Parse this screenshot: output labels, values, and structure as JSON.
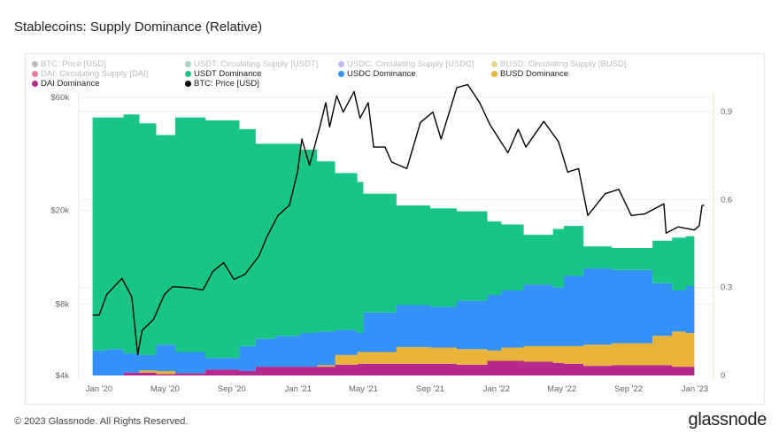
{
  "title": "Stablecoins: Supply Dominance (Relative)",
  "footer": "© 2023 Glassnode. All Rights Reserved.",
  "logo": "glassnode",
  "legend": [
    {
      "label": "BTC: Price [USD]",
      "color": "#7e8a93",
      "active": false
    },
    {
      "label": "USDT: Circulating Supply [USDT]",
      "color": "#5fb28e",
      "active": false
    },
    {
      "label": "USDC: Circulating Supply [USDC]",
      "color": "#8a7bf0",
      "active": false
    },
    {
      "label": "BUSD: Circulating Supply [BUSD]",
      "color": "#d4b22a",
      "active": false
    },
    {
      "label": "DAI: Circulating Supply [DAI]",
      "color": "#d0105c",
      "active": false
    },
    {
      "label": "USDT Dominance",
      "color": "#17c586",
      "active": true
    },
    {
      "label": "USDC Dominance",
      "color": "#3391f7",
      "active": true
    },
    {
      "label": "BUSD Dominance",
      "color": "#e8b53a",
      "active": true
    },
    {
      "label": "DAI Dominance",
      "color": "#b5288e",
      "active": true
    },
    {
      "label": "BTC: Price [USD]",
      "color": "#000000",
      "active": true
    }
  ],
  "chart_data": {
    "type": "area",
    "stacked": true,
    "title": "Stablecoins: Supply Dominance (Relative)",
    "x_ticks": [
      "Jan '20",
      "May '20",
      "Sep '20",
      "Jan '21",
      "May '21",
      "Sep '21",
      "Jan '22",
      "May '22",
      "Sep '22",
      "Jan '23"
    ],
    "x_tick_dates": [
      "2020-01-01",
      "2020-05-01",
      "2020-09-01",
      "2021-01-01",
      "2021-05-01",
      "2021-09-01",
      "2022-01-01",
      "2022-05-01",
      "2022-09-01",
      "2023-01-01"
    ],
    "y_left": {
      "scale": "log",
      "ticks": [
        "$4k",
        "$8k",
        "$20k",
        "$60k"
      ],
      "tick_values": [
        4000,
        8000,
        20000,
        60000
      ]
    },
    "y_right": {
      "scale": "linear",
      "ticks": [
        "0",
        "0.3",
        "0.6",
        "0.9"
      ],
      "tick_values": [
        0,
        0.3,
        0.6,
        0.9
      ]
    },
    "grid": true,
    "legend_position": "top",
    "dominance": {
      "dates": [
        "2019-12-20",
        "2020-01-15",
        "2020-02-15",
        "2020-03-15",
        "2020-04-15",
        "2020-05-20",
        "2020-07-15",
        "2020-09-15",
        "2020-10-15",
        "2020-11-20",
        "2021-01-05",
        "2021-02-05",
        "2021-03-10",
        "2021-04-20",
        "2021-05-01",
        "2021-07-01",
        "2021-09-01",
        "2021-10-20",
        "2021-12-15",
        "2022-01-10",
        "2022-02-20",
        "2022-04-15",
        "2022-05-05",
        "2022-06-10",
        "2022-08-01",
        "2022-10-15",
        "2022-11-20",
        "2022-12-15",
        "2022-12-31"
      ],
      "series": [
        {
          "name": "DAI Dominance",
          "color": "#b5288e",
          "values": [
            0,
            0,
            0.01,
            0.01,
            0.005,
            0.008,
            0.02,
            0.015,
            0.03,
            0.03,
            0.03,
            0.03,
            0.037,
            0.04,
            0.04,
            0.04,
            0.04,
            0.037,
            0.05,
            0.05,
            0.047,
            0.043,
            0.04,
            0.033,
            0.035,
            0.035,
            0.03,
            0.03,
            0.03
          ]
        },
        {
          "name": "BUSD Dominance",
          "color": "#e8b53a",
          "values": [
            0,
            0,
            0,
            0.007,
            0.01,
            0,
            0,
            0,
            0,
            0,
            0,
            0.005,
            0.033,
            0.04,
            0.04,
            0.057,
            0.055,
            0.053,
            0.035,
            0.045,
            0.053,
            0.057,
            0.06,
            0.072,
            0.075,
            0.1,
            0.12,
            0.115,
            0.09
          ]
        },
        {
          "name": "USDC Dominance",
          "color": "#3391f7",
          "values": [
            0.085,
            0.09,
            0.065,
            0.053,
            0.09,
            0.072,
            0.04,
            0.085,
            0.095,
            0.105,
            0.115,
            0.115,
            0.085,
            0.065,
            0.135,
            0.143,
            0.14,
            0.165,
            0.19,
            0.195,
            0.21,
            0.2,
            0.24,
            0.26,
            0.25,
            0.18,
            0.14,
            0.16,
            0.195
          ]
        },
        {
          "name": "USDT Dominance",
          "color": "#17c586",
          "values": [
            0.795,
            0.79,
            0.815,
            0.79,
            0.715,
            0.8,
            0.81,
            0.74,
            0.665,
            0.655,
            0.625,
            0.58,
            0.535,
            0.515,
            0.405,
            0.34,
            0.335,
            0.305,
            0.25,
            0.225,
            0.17,
            0.2,
            0.17,
            0.075,
            0.075,
            0.145,
            0.18,
            0.17,
            0.17
          ]
        }
      ]
    },
    "btc_price": {
      "name": "BTC: Price [USD]",
      "color": "#000000",
      "dates": [
        "2019-12-20",
        "2020-01-01",
        "2020-01-15",
        "2020-02-12",
        "2020-03-01",
        "2020-03-12",
        "2020-03-20",
        "2020-04-10",
        "2020-04-30",
        "2020-05-15",
        "2020-06-15",
        "2020-07-10",
        "2020-07-28",
        "2020-08-17",
        "2020-09-05",
        "2020-09-25",
        "2020-10-21",
        "2020-11-05",
        "2020-11-25",
        "2020-12-16",
        "2020-12-31",
        "2021-01-08",
        "2021-01-22",
        "2021-02-10",
        "2021-02-21",
        "2021-02-28",
        "2021-03-13",
        "2021-03-25",
        "2021-04-14",
        "2021-04-25",
        "2021-05-10",
        "2021-05-20",
        "2021-06-10",
        "2021-06-22",
        "2021-07-20",
        "2021-08-14",
        "2021-09-06",
        "2021-09-21",
        "2021-10-20",
        "2021-11-09",
        "2021-12-01",
        "2021-12-20",
        "2022-01-22",
        "2022-02-10",
        "2022-02-24",
        "2022-03-29",
        "2022-04-25",
        "2022-05-12",
        "2022-06-01",
        "2022-06-18",
        "2022-07-20",
        "2022-08-14",
        "2022-09-06",
        "2022-10-01",
        "2022-11-05",
        "2022-11-09",
        "2022-12-01",
        "2022-12-31",
        "2023-01-09",
        "2023-01-14",
        "2023-01-18"
      ],
      "values": [
        7200,
        7200,
        8800,
        10300,
        8600,
        4900,
        6200,
        6900,
        8800,
        9500,
        9400,
        9200,
        11000,
        12000,
        10200,
        10700,
        12800,
        15500,
        19000,
        21000,
        29000,
        40000,
        31000,
        45000,
        57000,
        45000,
        61000,
        52000,
        63500,
        49000,
        57000,
        37000,
        37000,
        32000,
        30000,
        47000,
        52000,
        40000,
        66000,
        68000,
        57000,
        46000,
        35000,
        44000,
        37000,
        47500,
        39000,
        29000,
        30000,
        19000,
        23500,
        24500,
        19000,
        19300,
        21300,
        16000,
        17000,
        16500,
        17200,
        20900,
        21000
      ]
    }
  }
}
